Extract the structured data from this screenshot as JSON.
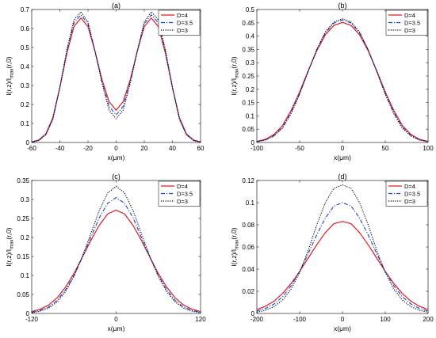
{
  "chart_data": [
    {
      "type": "line",
      "title": "(a)",
      "xlabel": "x(μm)",
      "ylabel": "I(r,z)/I_max(r,0)",
      "ylabel_parts": {
        "main": "I(r,z)/I",
        "sub": "max",
        "tail": "(r,0)"
      },
      "xlim": [
        -60,
        60
      ],
      "ylim": [
        0,
        0.7
      ],
      "xticks": [
        -60,
        -40,
        -20,
        0,
        20,
        40,
        60
      ],
      "yticks": [
        0,
        0.1,
        0.2,
        0.3,
        0.4,
        0.5,
        0.6,
        0.7
      ],
      "xtick_labels": [
        "-60",
        "-40",
        "-20",
        "0",
        "20",
        "40",
        "60"
      ],
      "ytick_labels": [
        "0",
        "0.1",
        "0.2",
        "0.3",
        "0.4",
        "0.5",
        "0.6",
        "0.7"
      ],
      "legend_position": "top-right",
      "x": [
        -60,
        -55,
        -50,
        -45,
        -40,
        -35,
        -30,
        -25,
        -20,
        -15,
        -10,
        -5,
        0,
        5,
        10,
        15,
        20,
        25,
        30,
        35,
        40,
        45,
        50,
        55,
        60
      ],
      "series": [
        {
          "name": "D=4",
          "color": "#e41a1c",
          "dash": "solid",
          "values": [
            0.003,
            0.013,
            0.045,
            0.13,
            0.29,
            0.47,
            0.61,
            0.655,
            0.61,
            0.48,
            0.33,
            0.215,
            0.17,
            0.215,
            0.33,
            0.48,
            0.61,
            0.655,
            0.61,
            0.47,
            0.29,
            0.13,
            0.045,
            0.013,
            0.003
          ]
        },
        {
          "name": "D=3.5",
          "color": "#1a3fd6",
          "dash": "dashdot",
          "values": [
            0.002,
            0.011,
            0.042,
            0.125,
            0.29,
            0.48,
            0.63,
            0.672,
            0.625,
            0.48,
            0.32,
            0.19,
            0.145,
            0.19,
            0.32,
            0.48,
            0.625,
            0.672,
            0.63,
            0.48,
            0.29,
            0.125,
            0.042,
            0.011,
            0.002
          ]
        },
        {
          "name": "D=3",
          "color": "#000000",
          "dash": "dotted",
          "values": [
            0.002,
            0.01,
            0.04,
            0.12,
            0.29,
            0.49,
            0.645,
            0.688,
            0.635,
            0.48,
            0.31,
            0.17,
            0.125,
            0.17,
            0.31,
            0.48,
            0.635,
            0.688,
            0.645,
            0.49,
            0.29,
            0.12,
            0.04,
            0.01,
            0.002
          ]
        }
      ]
    },
    {
      "type": "line",
      "title": "(b)",
      "xlabel": "x(μm)",
      "ylabel": "I(r,z)/I_max(r,0)",
      "ylabel_parts": {
        "main": "I(r,z)/I",
        "sub": "max",
        "tail": "(r,0)"
      },
      "xlim": [
        -100,
        100
      ],
      "ylim": [
        0,
        0.5
      ],
      "xticks": [
        -100,
        -50,
        0,
        50,
        100
      ],
      "yticks": [
        0,
        0.05,
        0.1,
        0.15,
        0.2,
        0.25,
        0.3,
        0.35,
        0.4,
        0.45,
        0.5
      ],
      "xtick_labels": [
        "-100",
        "-50",
        "0",
        "50",
        "100"
      ],
      "ytick_labels": [
        "0",
        "0.05",
        "0.1",
        "0.15",
        "0.2",
        "0.25",
        "0.3",
        "0.35",
        "0.4",
        "0.45",
        "0.5"
      ],
      "legend_position": "top-right",
      "x": [
        -100,
        -90,
        -80,
        -70,
        -60,
        -50,
        -40,
        -30,
        -20,
        -10,
        0,
        10,
        20,
        30,
        40,
        50,
        60,
        70,
        80,
        90,
        100
      ],
      "series": [
        {
          "name": "D=4",
          "color": "#e41a1c",
          "dash": "solid",
          "values": [
            0.004,
            0.012,
            0.03,
            0.064,
            0.12,
            0.19,
            0.27,
            0.345,
            0.405,
            0.44,
            0.452,
            0.44,
            0.405,
            0.345,
            0.27,
            0.19,
            0.12,
            0.064,
            0.03,
            0.012,
            0.004
          ]
        },
        {
          "name": "D=3.5",
          "color": "#1a3fd6",
          "dash": "dashdot",
          "values": [
            0.003,
            0.01,
            0.026,
            0.058,
            0.113,
            0.185,
            0.268,
            0.348,
            0.412,
            0.449,
            0.461,
            0.449,
            0.412,
            0.348,
            0.268,
            0.185,
            0.113,
            0.058,
            0.026,
            0.01,
            0.003
          ]
        },
        {
          "name": "D=3",
          "color": "#000000",
          "dash": "dotted",
          "values": [
            0.003,
            0.009,
            0.024,
            0.054,
            0.108,
            0.181,
            0.267,
            0.35,
            0.416,
            0.453,
            0.465,
            0.453,
            0.416,
            0.35,
            0.267,
            0.181,
            0.108,
            0.054,
            0.024,
            0.009,
            0.003
          ]
        }
      ]
    },
    {
      "type": "line",
      "title": "(c)",
      "xlabel": "x(μm)",
      "ylabel": "I(r,z)/I_max(r,0)",
      "ylabel_parts": {
        "main": "I(r,z)/I",
        "sub": "max",
        "tail": "(r,0)"
      },
      "xlim": [
        -120,
        120
      ],
      "ylim": [
        0,
        0.35
      ],
      "xticks": [
        -120,
        0,
        120
      ],
      "yticks": [
        0,
        0.05,
        0.1,
        0.15,
        0.2,
        0.25,
        0.3,
        0.35
      ],
      "xtick_labels": [
        "-120",
        "0",
        "120"
      ],
      "ytick_labels": [
        "0",
        "0.05",
        "0.1",
        "0.15",
        "0.2",
        "0.25",
        "0.3",
        "0.35"
      ],
      "legend_position": "top-right",
      "x": [
        -120,
        -108,
        -96,
        -84,
        -72,
        -60,
        -48,
        -36,
        -24,
        -12,
        0,
        12,
        24,
        36,
        48,
        60,
        72,
        84,
        96,
        108,
        120
      ],
      "series": [
        {
          "name": "D=4",
          "color": "#e41a1c",
          "dash": "solid",
          "values": [
            0.005,
            0.011,
            0.022,
            0.041,
            0.069,
            0.105,
            0.148,
            0.192,
            0.232,
            0.262,
            0.272,
            0.262,
            0.232,
            0.192,
            0.148,
            0.105,
            0.069,
            0.041,
            0.022,
            0.011,
            0.005
          ]
        },
        {
          "name": "D=3.5",
          "color": "#1a3fd6",
          "dash": "dashdot",
          "values": [
            0.003,
            0.008,
            0.017,
            0.034,
            0.062,
            0.1,
            0.148,
            0.2,
            0.252,
            0.29,
            0.305,
            0.29,
            0.252,
            0.2,
            0.148,
            0.1,
            0.062,
            0.034,
            0.017,
            0.008,
            0.003
          ]
        },
        {
          "name": "D=3",
          "color": "#000000",
          "dash": "dotted",
          "values": [
            0.002,
            0.006,
            0.014,
            0.03,
            0.057,
            0.097,
            0.15,
            0.21,
            0.271,
            0.317,
            0.335,
            0.317,
            0.271,
            0.21,
            0.15,
            0.097,
            0.057,
            0.03,
            0.014,
            0.006,
            0.002
          ]
        }
      ]
    },
    {
      "type": "line",
      "title": "(d)",
      "xlabel": "x(μm)",
      "ylabel": "I(r,z)/I_max(r,0)",
      "ylabel_parts": {
        "main": "I(r,z)/I",
        "sub": "max",
        "tail": "(r,0)"
      },
      "xlim": [
        -200,
        200
      ],
      "ylim": [
        0,
        0.12
      ],
      "xticks": [
        -200,
        -100,
        0,
        100,
        200
      ],
      "yticks": [
        0,
        0.02,
        0.04,
        0.06,
        0.08,
        0.1,
        0.12
      ],
      "xtick_labels": [
        "-200",
        "-100",
        "0",
        "100",
        "200"
      ],
      "ytick_labels": [
        "0",
        "0.02",
        "0.04",
        "0.06",
        "0.08",
        "0.1",
        "0.12"
      ],
      "legend_position": "top-right",
      "x": [
        -200,
        -180,
        -160,
        -140,
        -120,
        -100,
        -80,
        -60,
        -40,
        -20,
        0,
        20,
        40,
        60,
        80,
        100,
        120,
        140,
        160,
        180,
        200
      ],
      "series": [
        {
          "name": "D=4",
          "color": "#e41a1c",
          "dash": "solid",
          "values": [
            0.0035,
            0.0065,
            0.011,
            0.018,
            0.027,
            0.038,
            0.05,
            0.062,
            0.073,
            0.081,
            0.083,
            0.081,
            0.073,
            0.062,
            0.05,
            0.038,
            0.027,
            0.018,
            0.011,
            0.0065,
            0.0035
          ]
        },
        {
          "name": "D=3.5",
          "color": "#1a3fd6",
          "dash": "dashdot",
          "values": [
            0.0022,
            0.0045,
            0.0085,
            0.015,
            0.025,
            0.038,
            0.054,
            0.071,
            0.086,
            0.097,
            0.1,
            0.097,
            0.086,
            0.071,
            0.054,
            0.038,
            0.025,
            0.015,
            0.0085,
            0.0045,
            0.0022
          ]
        },
        {
          "name": "D=3",
          "color": "#000000",
          "dash": "dotted",
          "values": [
            0.0012,
            0.0028,
            0.0062,
            0.012,
            0.022,
            0.037,
            0.057,
            0.08,
            0.1,
            0.113,
            0.116,
            0.113,
            0.1,
            0.08,
            0.057,
            0.037,
            0.022,
            0.012,
            0.0062,
            0.0028,
            0.0012
          ]
        }
      ]
    }
  ]
}
